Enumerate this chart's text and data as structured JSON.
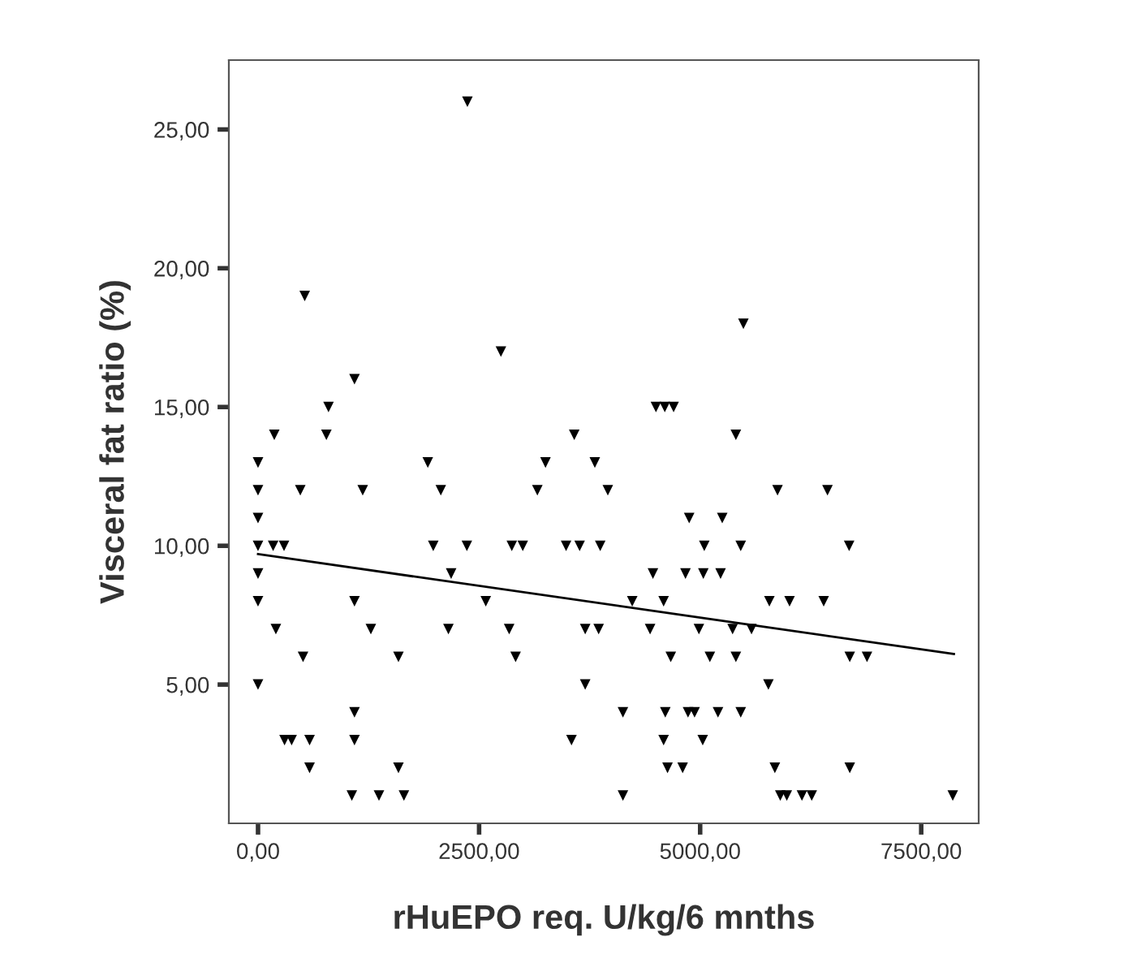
{
  "chart_data": {
    "type": "scatter",
    "xlabel": "rHuEPO req. U/kg/6 mnths",
    "ylabel": "Visceral fat ratio (%)",
    "xlim": [
      -330,
      8150
    ],
    "ylim": [
      0,
      27.5
    ],
    "xticks": [
      {
        "value": 0,
        "label": "0,00"
      },
      {
        "value": 2500,
        "label": "2500,00"
      },
      {
        "value": 5000,
        "label": "5000,00"
      },
      {
        "value": 7500,
        "label": "7500,00"
      }
    ],
    "yticks": [
      {
        "value": 5,
        "label": "5,00"
      },
      {
        "value": 10,
        "label": "10,00"
      },
      {
        "value": 15,
        "label": "15,00"
      },
      {
        "value": 20,
        "label": "20,00"
      },
      {
        "value": 25,
        "label": "25,00"
      }
    ],
    "grid": false,
    "marker": "triangle",
    "series": [
      {
        "color": "#000000",
        "x": [
          0,
          0,
          0,
          0,
          0,
          0,
          0,
          2368,
          528,
          2747,
          1091,
          797,
          184,
          773,
          3576,
          1920,
          3251,
          478,
          1184,
          2067,
          3159,
          5489,
          4500,
          4600,
          4700,
          5404,
          3809,
          3956,
          5875,
          6440,
          4876,
          5250,
          171,
          294,
          1982,
          2362,
          2870,
          2994,
          3484,
          3637,
          3870,
          5047,
          5459,
          6685,
          2184,
          4466,
          4834,
          5036,
          5231,
          1091,
          2576,
          4232,
          4587,
          5783,
          6011,
          6397,
          202,
          1276,
          2153,
          2840,
          3700,
          3852,
          4434,
          4986,
          5367,
          5581,
          509,
          1588,
          2913,
          4668,
          5110,
          5404,
          6692,
          6887,
          3700,
          5772,
          1091,
          4127,
          4606,
          4863,
          4937,
          5202,
          5459,
          300,
          380,
          583,
          1091,
          3545,
          4587,
          5029,
          583,
          1588,
          4631,
          4802,
          5845,
          6692,
          1061,
          1368,
          1650,
          4127,
          5906,
          5980,
          6151,
          6262,
          7857
        ],
        "values": [
          13,
          12,
          11,
          10,
          9,
          8,
          5,
          26,
          19,
          17,
          16,
          15,
          14,
          14,
          14,
          13,
          13,
          12,
          12,
          12,
          12,
          18,
          15,
          15,
          15,
          14,
          13,
          12,
          12,
          12,
          11,
          11,
          10,
          10,
          10,
          10,
          10,
          10,
          10,
          10,
          10,
          10,
          10,
          10,
          9,
          9,
          9,
          9,
          9,
          8,
          8,
          8,
          8,
          8,
          8,
          8,
          7,
          7,
          7,
          7,
          7,
          7,
          7,
          7,
          7,
          7,
          6,
          6,
          6,
          6,
          6,
          6,
          6,
          6,
          5,
          5,
          4,
          4,
          4,
          4,
          4,
          4,
          4,
          3,
          3,
          3,
          3,
          3,
          3,
          3,
          2,
          2,
          2,
          2,
          2,
          2,
          1,
          1,
          1,
          1,
          1,
          1,
          1,
          1,
          1
        ]
      },
      {
        "type": "line",
        "color": "#000000",
        "x": [
          0,
          7870
        ],
        "values": [
          9.7,
          6.1
        ],
        "marker": "none"
      }
    ]
  }
}
